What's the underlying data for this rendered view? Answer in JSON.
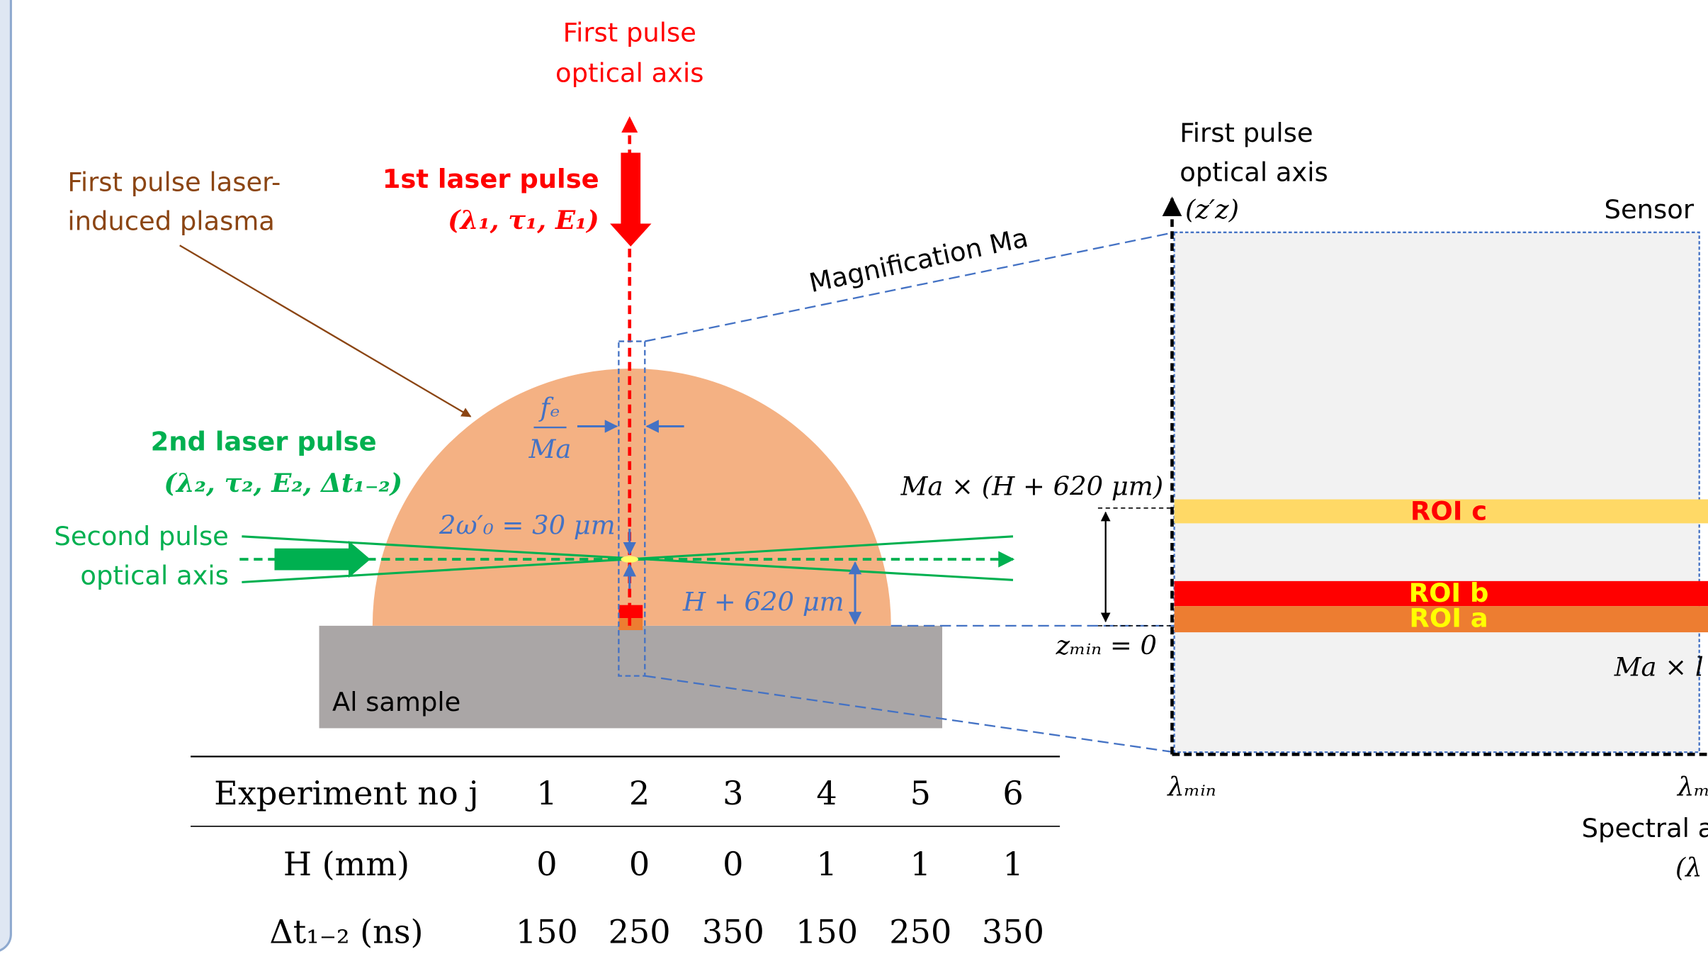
{
  "left": {
    "top_axis_label": [
      "First pulse",
      "optical axis"
    ],
    "first_pulse_title": "1st laser pulse",
    "first_pulse_params": "(λ₁, τ₁, E₁)",
    "plasma_label": [
      "First pulse laser-",
      "induced plasma"
    ],
    "second_pulse_title": "2nd laser pulse",
    "second_pulse_params": "(λ₂, τ₂, E₂, Δt₁₋₂)",
    "second_axis_label": [
      "Second pulse",
      "optical axis"
    ],
    "fe_numerator": "fₑ",
    "fe_denominator": "Ma",
    "waist_label": "2ω′₀ = 30 μm",
    "height_label": "H + 620 μm",
    "sample_label": "Al sample",
    "magnification_label": "Magnification Ma"
  },
  "right": {
    "axis_label": [
      "First pulse",
      "optical axis"
    ],
    "axis_symbol": "(z′z)",
    "sensor_label": "Sensor",
    "top_level_label": "Ma × (H + 620 μm)",
    "zero_label": "zₘᵢₙ = 0",
    "roi_c": "ROI c",
    "roi_b": "ROI b",
    "roi_a": "ROI a",
    "side_label": "Ma × l",
    "lambda_min": "λₘᵢₙ",
    "lambda_max": "λₘ",
    "spectral_label": [
      "Spectral a",
      "(λ"
    ]
  },
  "table": {
    "header": [
      "Experiment no j",
      "1",
      "2",
      "3",
      "4",
      "5",
      "6"
    ],
    "rows": [
      [
        "H (mm)",
        "0",
        "0",
        "0",
        "1",
        "1",
        "1"
      ],
      [
        "Δt₁₋₂ (ns)",
        "150",
        "250",
        "350",
        "150",
        "250",
        "350"
      ]
    ]
  }
}
